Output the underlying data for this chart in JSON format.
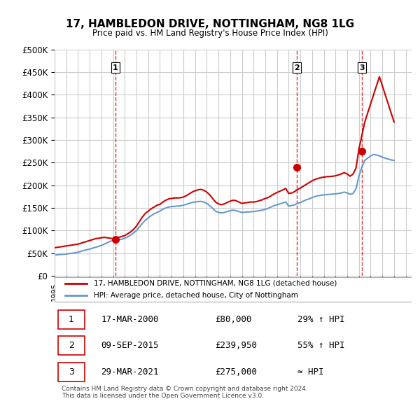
{
  "title": "17, HAMBLEDON DRIVE, NOTTINGHAM, NG8 1LG",
  "subtitle": "Price paid vs. HM Land Registry's House Price Index (HPI)",
  "ylabel_ticks": [
    "£0",
    "£50K",
    "£100K",
    "£150K",
    "£200K",
    "£250K",
    "£300K",
    "£350K",
    "£400K",
    "£450K",
    "£500K"
  ],
  "ytick_vals": [
    0,
    50000,
    100000,
    150000,
    200000,
    250000,
    300000,
    350000,
    400000,
    450000,
    500000
  ],
  "xlim": [
    1995.0,
    2025.5
  ],
  "ylim": [
    0,
    500000
  ],
  "price_paid": {
    "dates": [
      2000.2,
      2015.7,
      2021.25
    ],
    "values": [
      80000,
      239950,
      275000
    ]
  },
  "markers": [
    {
      "num": 1,
      "date": 2000.2,
      "value": 80000,
      "label": "17-MAR-2000",
      "price": "£80,000",
      "hpi": "29% ↑ HPI"
    },
    {
      "num": 2,
      "date": 2015.7,
      "value": 239950,
      "label": "09-SEP-2015",
      "price": "£239,950",
      "hpi": "55% ↑ HPI"
    },
    {
      "num": 3,
      "date": 2021.25,
      "value": 275000,
      "label": "29-MAR-2021",
      "price": "£275,000",
      "hpi": "≈ HPI"
    }
  ],
  "red_line_color": "#cc0000",
  "blue_line_color": "#6699cc",
  "marker_dashed_color": "#cc0000",
  "grid_color": "#cccccc",
  "background_color": "#ffffff",
  "legend_label_red": "17, HAMBLEDON DRIVE, NOTTINGHAM, NG8 1LG (detached house)",
  "legend_label_blue": "HPI: Average price, detached house, City of Nottingham",
  "footer": "Contains HM Land Registry data © Crown copyright and database right 2024.\nThis data is licensed under the Open Government Licence v3.0.",
  "hpi_data": {
    "years": [
      1995,
      1995.25,
      1995.5,
      1995.75,
      1996,
      1996.25,
      1996.5,
      1996.75,
      1997,
      1997.25,
      1997.5,
      1997.75,
      1998,
      1998.25,
      1998.5,
      1998.75,
      1999,
      1999.25,
      1999.5,
      1999.75,
      2000,
      2000.25,
      2000.5,
      2000.75,
      2001,
      2001.25,
      2001.5,
      2001.75,
      2002,
      2002.25,
      2002.5,
      2002.75,
      2003,
      2003.25,
      2003.5,
      2003.75,
      2004,
      2004.25,
      2004.5,
      2004.75,
      2005,
      2005.25,
      2005.5,
      2005.75,
      2006,
      2006.25,
      2006.5,
      2006.75,
      2007,
      2007.25,
      2007.5,
      2007.75,
      2008,
      2008.25,
      2008.5,
      2008.75,
      2009,
      2009.25,
      2009.5,
      2009.75,
      2010,
      2010.25,
      2010.5,
      2010.75,
      2011,
      2011.25,
      2011.5,
      2011.75,
      2012,
      2012.25,
      2012.5,
      2012.75,
      2013,
      2013.25,
      2013.5,
      2013.75,
      2014,
      2014.25,
      2014.5,
      2014.75,
      2015,
      2015.25,
      2015.5,
      2015.75,
      2016,
      2016.25,
      2016.5,
      2016.75,
      2017,
      2017.25,
      2017.5,
      2017.75,
      2018,
      2018.25,
      2018.5,
      2018.75,
      2019,
      2019.25,
      2019.5,
      2019.75,
      2020,
      2020.25,
      2020.5,
      2020.75,
      2021,
      2021.25,
      2021.5,
      2021.75,
      2022,
      2022.25,
      2022.5,
      2022.75,
      2023,
      2023.25,
      2023.5,
      2023.75,
      2024
    ],
    "values": [
      46000,
      46500,
      47000,
      47500,
      48000,
      49000,
      50000,
      51000,
      52000,
      54000,
      56000,
      57500,
      59000,
      61000,
      63000,
      65000,
      67000,
      70000,
      73000,
      76000,
      78000,
      79000,
      80000,
      81000,
      83000,
      86000,
      90000,
      95000,
      100000,
      108000,
      116000,
      123000,
      128000,
      133000,
      137000,
      140000,
      143000,
      147000,
      150000,
      152000,
      153000,
      153500,
      154000,
      154500,
      156000,
      158000,
      160000,
      162000,
      163000,
      164000,
      164500,
      163000,
      160000,
      155000,
      149000,
      143000,
      140000,
      139000,
      140000,
      142000,
      144000,
      145000,
      144000,
      142000,
      140000,
      140500,
      141000,
      141500,
      142000,
      143000,
      144000,
      145000,
      147000,
      149000,
      152000,
      155000,
      157000,
      159000,
      161000,
      163000,
      154000,
      155000,
      157000,
      160000,
      162000,
      165000,
      168000,
      170000,
      173000,
      175000,
      177000,
      178000,
      179000,
      179500,
      180000,
      180500,
      181000,
      182000,
      183000,
      185000,
      183000,
      180000,
      182000,
      192000,
      220000,
      240000,
      255000,
      260000,
      265000,
      268000,
      267000,
      265000,
      262000,
      260000,
      258000,
      256000,
      255000
    ]
  },
  "red_data": {
    "years": [
      1995,
      1995.25,
      1995.5,
      1995.75,
      1996,
      1996.25,
      1996.5,
      1996.75,
      1997,
      1997.25,
      1997.5,
      1997.75,
      1998,
      1998.25,
      1998.5,
      1998.75,
      1999,
      1999.25,
      1999.5,
      1999.75,
      2000,
      2000.25,
      2000.5,
      2000.75,
      2001,
      2001.25,
      2001.5,
      2001.75,
      2002,
      2002.25,
      2002.5,
      2002.75,
      2003,
      2003.25,
      2003.5,
      2003.75,
      2004,
      2004.25,
      2004.5,
      2004.75,
      2005,
      2005.25,
      2005.5,
      2005.75,
      2006,
      2006.25,
      2006.5,
      2006.75,
      2007,
      2007.25,
      2007.5,
      2007.75,
      2008,
      2008.25,
      2008.5,
      2008.75,
      2009,
      2009.25,
      2009.5,
      2009.75,
      2010,
      2010.25,
      2010.5,
      2010.75,
      2011,
      2011.25,
      2011.5,
      2011.75,
      2012,
      2012.25,
      2012.5,
      2012.75,
      2013,
      2013.25,
      2013.5,
      2013.75,
      2014,
      2014.25,
      2014.5,
      2014.75,
      2015,
      2015.25,
      2015.5,
      2015.75,
      2016,
      2016.25,
      2016.5,
      2016.75,
      2017,
      2017.25,
      2017.5,
      2017.75,
      2018,
      2018.25,
      2018.5,
      2018.75,
      2019,
      2019.25,
      2019.5,
      2019.75,
      2020,
      2020.25,
      2020.5,
      2020.75,
      2021,
      2021.25,
      2021.5,
      2021.75,
      2022,
      2022.25,
      2022.5,
      2022.75,
      2023,
      2023.25,
      2023.5,
      2023.75,
      2024
    ],
    "values": [
      62000,
      63000,
      64000,
      65000,
      66000,
      67000,
      68000,
      69000,
      70000,
      72000,
      74000,
      76000,
      78000,
      80000,
      82000,
      83000,
      84000,
      85000,
      84000,
      83000,
      82000,
      83000,
      85000,
      87000,
      89000,
      93000,
      97000,
      103000,
      110000,
      120000,
      130000,
      138000,
      143000,
      148000,
      152000,
      156000,
      158000,
      163000,
      167000,
      170000,
      171000,
      172000,
      172000,
      172500,
      174000,
      177000,
      181000,
      185000,
      188000,
      190000,
      191000,
      189000,
      185000,
      179000,
      171000,
      163000,
      159000,
      157000,
      159000,
      162000,
      165000,
      167000,
      166000,
      163000,
      160000,
      161000,
      162000,
      163000,
      163000,
      164000,
      166000,
      168000,
      171000,
      173000,
      177000,
      181000,
      184000,
      187000,
      190000,
      193000,
      182000,
      183000,
      186000,
      191000,
      194000,
      198000,
      202000,
      206000,
      210000,
      213000,
      215000,
      217000,
      218000,
      219000,
      219500,
      220000,
      221000,
      223000,
      225000,
      228000,
      225000,
      220000,
      225000,
      238000,
      280000,
      310000,
      340000,
      360000,
      380000,
      400000,
      420000,
      440000,
      420000,
      400000,
      380000,
      360000,
      340000
    ]
  }
}
